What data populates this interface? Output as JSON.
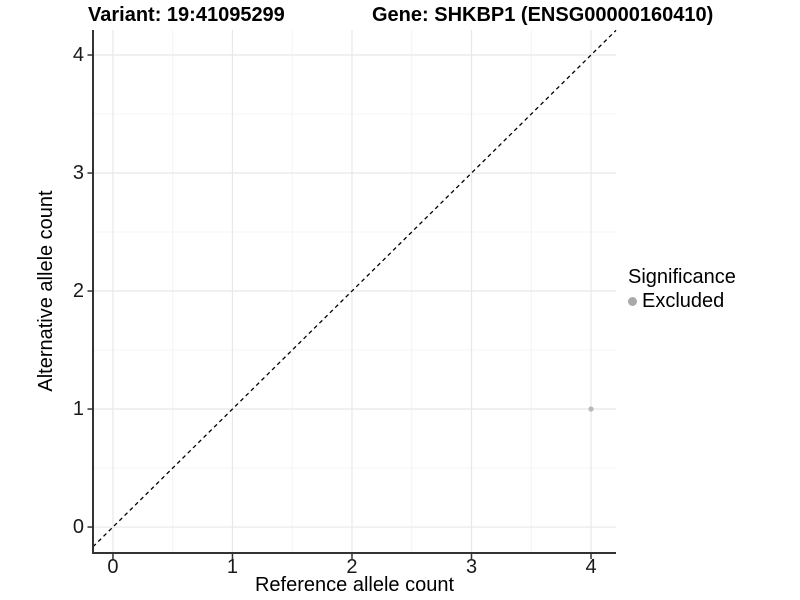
{
  "header": {
    "title_left": "Variant: 19:41095299",
    "title_right": "Gene: SHKBP1 (ENSG00000160410)"
  },
  "chart_data": {
    "type": "scatter",
    "title": "Variant: 19:41095299    Gene: SHKBP1 (ENSG00000160410)",
    "xlabel": "Reference allele count",
    "ylabel": "Alternative allele count",
    "xlim": [
      -0.167,
      4.209
    ],
    "ylim": [
      -0.22,
      4.212
    ],
    "x_ticks": [
      0,
      1,
      2,
      3,
      4
    ],
    "y_ticks": [
      0,
      1,
      2,
      3,
      4
    ],
    "x_minor_ticks": [
      0.5,
      1.5,
      2.5,
      3.5
    ],
    "y_minor_ticks": [
      0.5,
      1.5,
      2.5,
      3.5
    ],
    "grid": true,
    "points": [
      {
        "x": 4,
        "y": 1,
        "significance": "Excluded"
      }
    ],
    "reference_line": {
      "kind": "identity",
      "equation": "y = x",
      "style": "dashed",
      "color": "#000000"
    },
    "legend": {
      "position": "right",
      "title": "Significance",
      "entries": [
        {
          "label": "Excluded",
          "color": "#a9a9a9"
        }
      ]
    },
    "colors": {
      "point": "#b9b9b9",
      "grid_major": "#e8e8e8",
      "grid_minor": "#f4f4f4",
      "axis_line": "#333333",
      "tick": "#333333",
      "background": "#ffffff"
    }
  }
}
